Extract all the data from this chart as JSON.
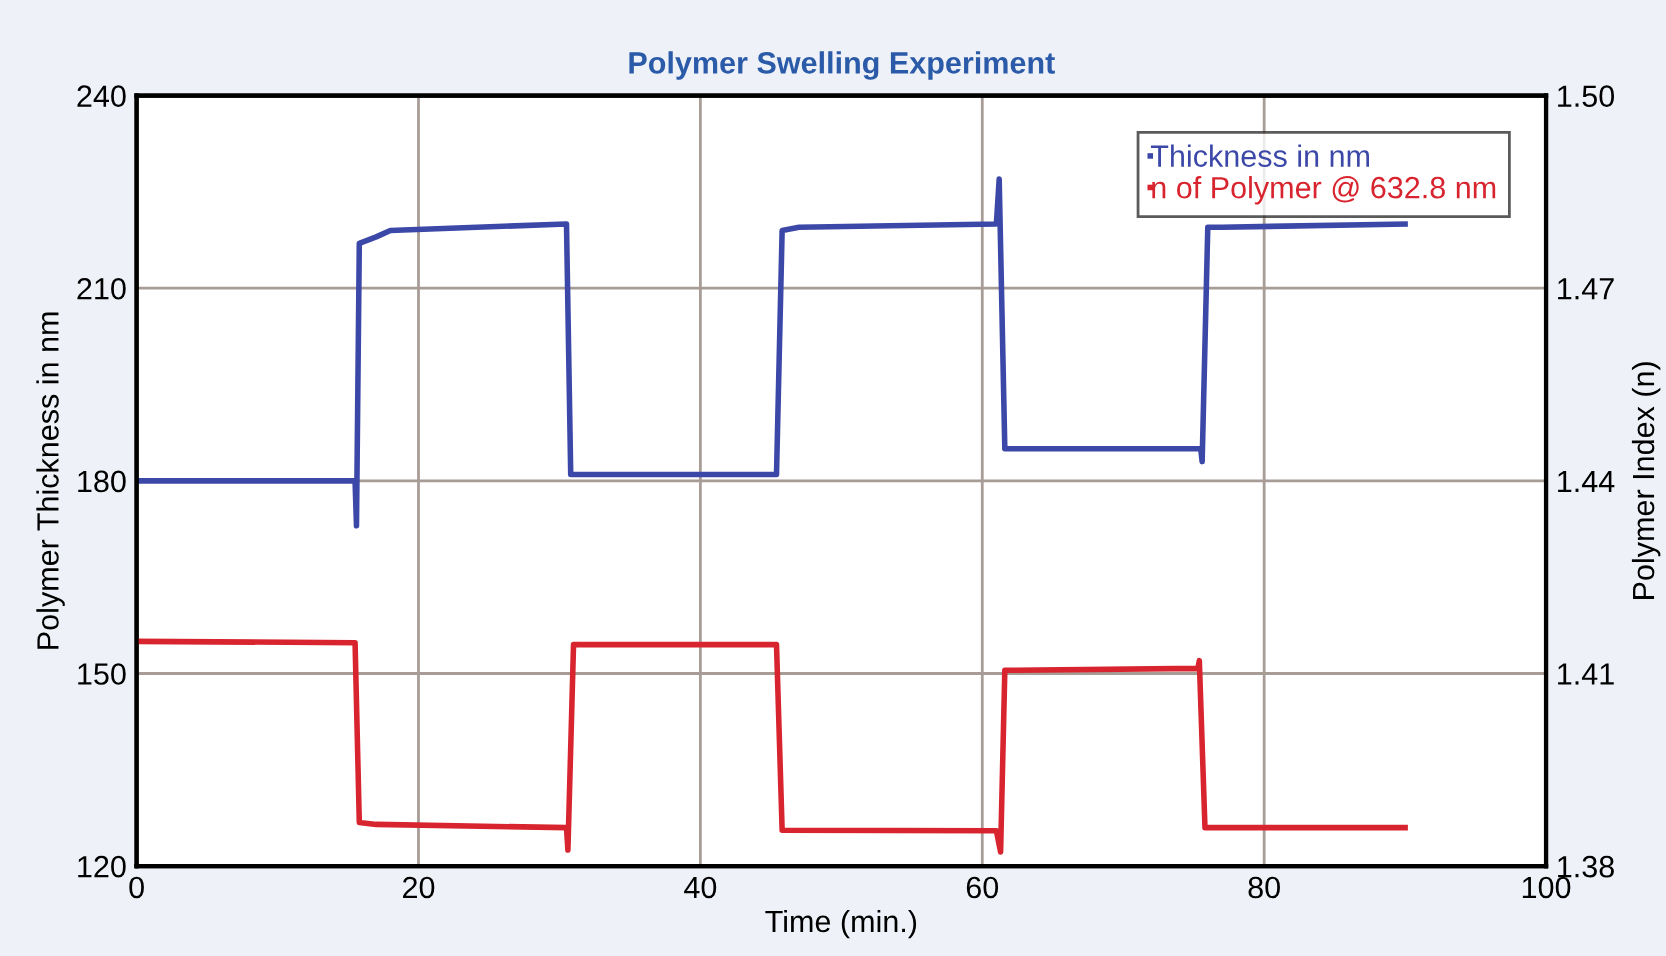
{
  "chart_data": {
    "type": "line",
    "title": "Polymer Swelling Experiment",
    "xlabel": "Time (min.)",
    "ylabel": "Polymer Thickness in nm",
    "y2label": "Polymer Index (n)",
    "xlim": [
      0,
      100
    ],
    "xticks": [
      0,
      20,
      40,
      60,
      80,
      100
    ],
    "ylim": [
      120,
      240
    ],
    "yticks": [
      120,
      150,
      180,
      210,
      240
    ],
    "y2lim": [
      1.38,
      1.5
    ],
    "y2ticks": [
      1.38,
      1.41,
      1.44,
      1.47,
      {
        "value": 1.5,
        "label": "1.50"
      }
    ],
    "grid": true,
    "legend": "top right",
    "marker": "none",
    "line_style": "solid",
    "series": [
      {
        "name": "Thickness in nm",
        "color": "#3c48a8",
        "x": [
          0,
          15.5,
          15.6,
          15.8,
          17,
          18,
          30.5,
          30.8,
          45.4,
          45.8,
          47,
          61,
          61.2,
          61.6,
          75.5,
          75.6,
          76,
          77,
          90
        ],
        "values": [
          180,
          180,
          173,
          217,
          218,
          219,
          220,
          181,
          181,
          219,
          219.5,
          220,
          227,
          185,
          185,
          183,
          219.5,
          219.5,
          220
        ]
      },
      {
        "name": "n of Polymer @ 632.8 nm",
        "color": "#d8242e",
        "axis": "y2",
        "x": [
          0,
          15.5,
          15.8,
          17,
          30.5,
          30.6,
          31,
          45.4,
          45.8,
          61,
          61.3,
          61.6,
          75.3,
          75.4,
          75.8,
          90
        ],
        "values": [
          1.415,
          1.4148,
          1.3868,
          1.3865,
          1.386,
          1.3825,
          1.4145,
          1.4145,
          1.3856,
          1.3855,
          1.3822,
          1.4105,
          1.4108,
          1.412,
          1.386,
          1.386
        ]
      }
    ]
  }
}
